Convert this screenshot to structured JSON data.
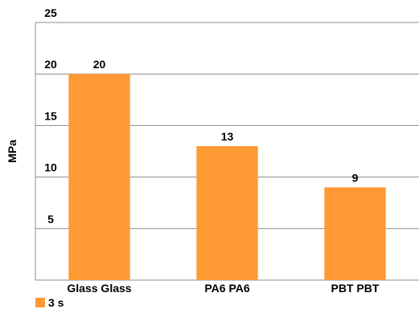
{
  "chart_data": {
    "type": "bar",
    "title": "",
    "xlabel": "",
    "ylabel": "MPa",
    "ylim": [
      0,
      25
    ],
    "yticks": [
      "25",
      "20",
      "15",
      "10",
      "5"
    ],
    "ytick_values": [
      25,
      20,
      15,
      10,
      5
    ],
    "categories": [
      "Glass Glass",
      "PA6 PA6",
      "PBT PBT"
    ],
    "series": [
      {
        "name": "3 s",
        "values": [
          20,
          13,
          9
        ],
        "color": "#ff9933"
      }
    ],
    "data_labels": [
      "20",
      "13",
      "9"
    ],
    "grid": true,
    "legend_position": "bottom-left"
  }
}
